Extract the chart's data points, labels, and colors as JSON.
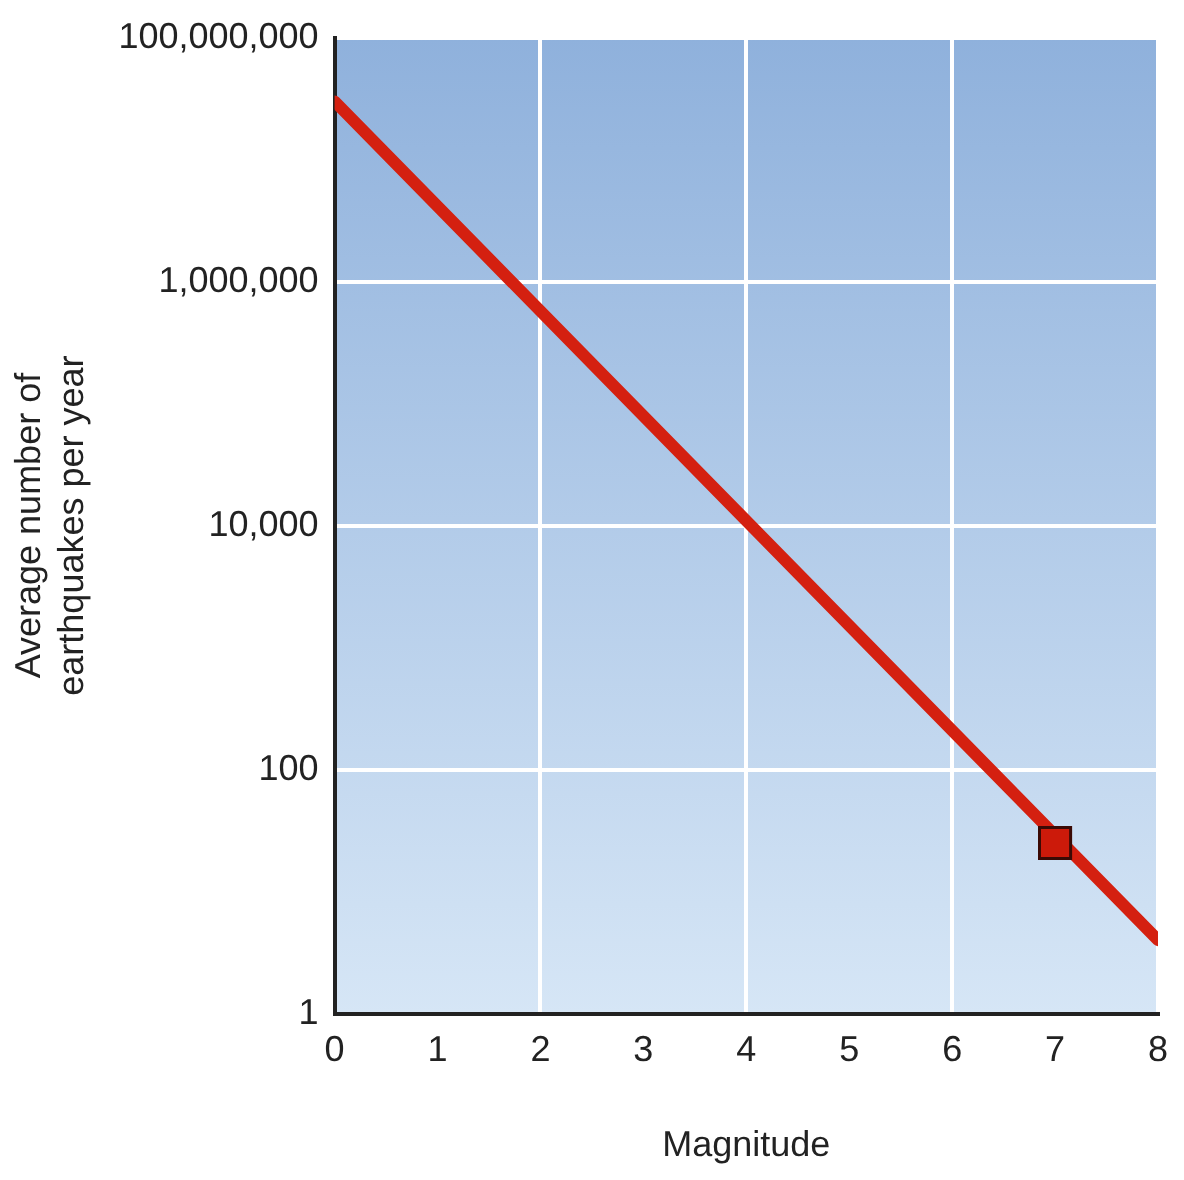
{
  "chart_data": {
    "type": "line",
    "xlabel": "Magnitude",
    "ylabel": "Average number of\nearthquakes per year",
    "series": [
      {
        "color": "#d42010",
        "x": [
          0,
          8
        ],
        "values": [
          30000000,
          4
        ]
      },
      {
        "type": "scatter",
        "color": "#cc1a0a",
        "x": [
          7
        ],
        "values": [
          25
        ],
        "marker": "square"
      }
    ],
    "xlim": [
      0,
      8
    ],
    "xticks": [
      0,
      1,
      2,
      3,
      4,
      5,
      6,
      7,
      8
    ],
    "ylim": [
      1,
      100000000
    ],
    "yticks": [
      1,
      100,
      {
        "value": 10000,
        "label": "10,000"
      },
      {
        "value": 1000000,
        "label": "1,000,000"
      },
      {
        "value": 100000000,
        "label": "100,000,000"
      }
    ],
    "log": "y",
    "grid": true,
    "legend": false
  }
}
